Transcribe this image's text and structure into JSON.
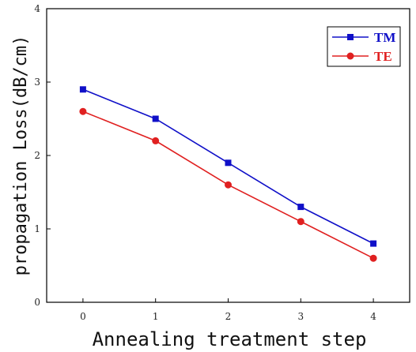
{
  "chart_data": {
    "type": "line",
    "title": "",
    "xlabel": "Annealing treatment step",
    "ylabel": "propagation Loss(dB/cm)",
    "x": [
      0,
      1,
      2,
      3,
      4
    ],
    "x_ticks": [
      "0",
      "1",
      "2",
      "3",
      "4"
    ],
    "y_ticks": [
      "0",
      "1",
      "2",
      "3",
      "4"
    ],
    "xlim": [
      -0.5,
      4.5
    ],
    "ylim": [
      0,
      4
    ],
    "grid": false,
    "legend_position": "top-right",
    "series": [
      {
        "name": "TM",
        "values": [
          2.9,
          2.5,
          1.9,
          1.3,
          0.8
        ],
        "color": "#1010c8",
        "marker": "square"
      },
      {
        "name": "TE",
        "values": [
          2.6,
          2.2,
          1.6,
          1.1,
          0.6
        ],
        "color": "#e02020",
        "marker": "circle"
      }
    ]
  }
}
